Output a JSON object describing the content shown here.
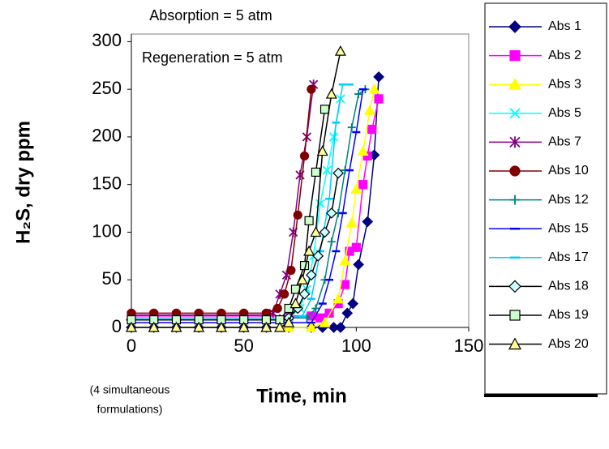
{
  "chart_data": {
    "type": "line",
    "title": "Absorption = 5 atm",
    "subtitle": "Regeneration = 5 atm",
    "x_label": "Time, min",
    "y_label": "H₂S, dry ppm",
    "annotation": [
      "(4 simultaneous",
      "formulations)"
    ],
    "xlim": [
      0,
      150
    ],
    "ylim": [
      0,
      308
    ],
    "xticks": [
      0,
      50,
      100,
      150
    ],
    "yticks": [
      0,
      50,
      100,
      150,
      200,
      250,
      300
    ],
    "legend": "right",
    "series": [
      {
        "name": "Abs 1",
        "color": "#000080",
        "marker": "diamond",
        "marker_fill": "#000080",
        "x": [
          0,
          10,
          20,
          30,
          40,
          50,
          60,
          70,
          80,
          85,
          90,
          93,
          96,
          98.5,
          101,
          105,
          108,
          110
        ],
        "values": [
          0,
          0,
          0,
          0,
          0,
          0,
          0,
          0,
          0,
          0,
          0,
          0,
          15,
          25,
          66,
          111,
          181,
          263
        ]
      },
      {
        "name": "Abs 2",
        "color": "#ff00ff",
        "marker": "square",
        "marker_fill": "#ff00ff",
        "x": [
          0,
          10,
          20,
          30,
          40,
          50,
          60,
          70,
          80,
          84,
          88,
          92,
          95,
          97,
          100,
          103,
          105,
          107,
          110
        ],
        "values": [
          12,
          12,
          12,
          12,
          12,
          12,
          12,
          12,
          12,
          10,
          15,
          25,
          45,
          80,
          84,
          150,
          180,
          208,
          240
        ]
      },
      {
        "name": "Abs 3",
        "color": "#ffff00",
        "marker": "triangle",
        "marker_fill": "#ffff00",
        "x": [
          0,
          10,
          20,
          30,
          40,
          50,
          60,
          70,
          80,
          86,
          92,
          95,
          98,
          100,
          103,
          106,
          108
        ],
        "values": [
          0,
          0,
          0,
          0,
          0,
          0,
          0,
          0,
          0,
          5,
          30,
          70,
          110,
          145,
          185,
          228,
          250
        ]
      },
      {
        "name": "Abs 5",
        "color": "#00ffff",
        "marker": "x",
        "marker_fill": "none",
        "x": [
          0,
          10,
          20,
          30,
          40,
          50,
          60,
          70,
          75,
          78,
          81,
          84,
          87,
          90,
          93
        ],
        "values": [
          10,
          10,
          10,
          10,
          10,
          10,
          10,
          10,
          20,
          40,
          75,
          130,
          165,
          200,
          240
        ]
      },
      {
        "name": "Abs 7",
        "color": "#800080",
        "marker": "star",
        "marker_fill": "none",
        "x": [
          0,
          10,
          20,
          30,
          40,
          50,
          60,
          63,
          66,
          69,
          72,
          75,
          78,
          81
        ],
        "values": [
          13,
          13,
          13,
          13,
          13,
          13,
          13,
          15,
          35,
          55,
          100,
          160,
          200,
          255
        ]
      },
      {
        "name": "Abs 10",
        "color": "#800000",
        "marker": "circle",
        "marker_fill": "#800000",
        "x": [
          0,
          10,
          20,
          30,
          40,
          50,
          60,
          65,
          68,
          71,
          74,
          77,
          80
        ],
        "values": [
          15,
          15,
          15,
          15,
          15,
          15,
          15,
          20,
          35,
          60,
          118,
          180,
          250
        ]
      },
      {
        "name": "Abs 12",
        "color": "#008080",
        "marker": "plus",
        "marker_fill": "none",
        "x": [
          0,
          10,
          20,
          30,
          40,
          50,
          60,
          70,
          78,
          82,
          86,
          89,
          92,
          95,
          98,
          101,
          104
        ],
        "values": [
          10,
          10,
          10,
          10,
          10,
          10,
          10,
          10,
          10,
          20,
          50,
          90,
          120,
          165,
          210,
          245,
          250
        ]
      },
      {
        "name": "Abs 15",
        "color": "#0000ff",
        "marker": "dash",
        "marker_fill": "none",
        "x": [
          0,
          10,
          20,
          30,
          40,
          50,
          60,
          70,
          80,
          85,
          88,
          91,
          94,
          97,
          100,
          103
        ],
        "values": [
          5,
          5,
          5,
          5,
          5,
          5,
          5,
          5,
          5,
          25,
          50,
          80,
          120,
          165,
          205,
          250
        ]
      },
      {
        "name": "Abs 17",
        "color": "#00ccff",
        "marker": "dash",
        "marker_fill": "none",
        "x": [
          0,
          10,
          20,
          30,
          40,
          50,
          60,
          70,
          76,
          80,
          84,
          88,
          91,
          94,
          97
        ],
        "values": [
          10,
          10,
          10,
          10,
          10,
          10,
          10,
          10,
          12,
          30,
          80,
          135,
          215,
          255,
          255
        ]
      },
      {
        "name": "Abs 18",
        "color": "#000000",
        "marker": "diamond",
        "marker_fill": "#ccffff",
        "x": [
          0,
          10,
          20,
          30,
          40,
          50,
          60,
          66,
          70,
          74,
          77,
          80,
          83,
          86,
          89,
          92
        ],
        "values": [
          8,
          8,
          8,
          8,
          8,
          8,
          8,
          8,
          10,
          20,
          35,
          55,
          75,
          100,
          120,
          162
        ]
      },
      {
        "name": "Abs 19",
        "color": "#000000",
        "marker": "square",
        "marker_fill": "#ccffcc",
        "x": [
          0,
          10,
          20,
          30,
          40,
          50,
          60,
          66,
          70,
          73,
          77,
          79,
          82,
          86
        ],
        "values": [
          8,
          8,
          8,
          8,
          8,
          8,
          8,
          8,
          20,
          40,
          65,
          112,
          163,
          229
        ]
      },
      {
        "name": "Abs 20",
        "color": "#000000",
        "marker": "triangle",
        "marker_fill": "#ffff99",
        "x": [
          0,
          10,
          20,
          30,
          40,
          50,
          60,
          66,
          70,
          73,
          76,
          79,
          82,
          85,
          89,
          93
        ],
        "values": [
          0,
          0,
          0,
          0,
          0,
          0,
          0,
          0,
          5,
          25,
          50,
          80,
          100,
          185,
          245,
          290
        ]
      }
    ]
  }
}
